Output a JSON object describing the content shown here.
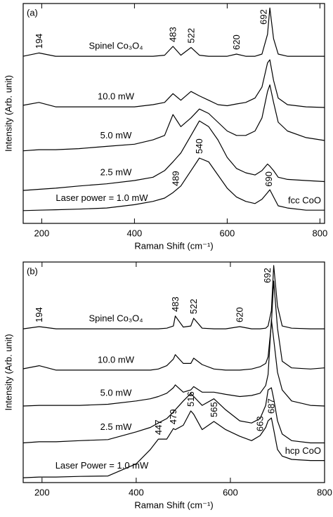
{
  "chart_data": [
    {
      "type": "line",
      "panel_label": "(a)",
      "xlabel": "Raman Shift (cm⁻¹)",
      "ylabel": "Intensity (Arb. unit)",
      "x": [
        160,
        194,
        230,
        280,
        340,
        400,
        440,
        465,
        483,
        500,
        522,
        540,
        560,
        580,
        600,
        620,
        640,
        660,
        675,
        687,
        692,
        700,
        710,
        730,
        770,
        810
      ],
      "xlim": [
        160,
        810
      ],
      "xticks": [
        200,
        400,
        600,
        800
      ],
      "ylim": [
        0,
        100
      ],
      "note": "fcc CoO",
      "series": [
        {
          "name": "Spinel Co₃O₄",
          "color": "#000000",
          "peaks": [
            194,
            483,
            522,
            620,
            692
          ],
          "values": [
            76,
            77.5,
            76,
            76,
            76,
            76,
            76,
            76.5,
            80.5,
            76.5,
            80,
            76.5,
            76,
            76,
            76,
            77,
            76,
            76,
            77,
            86,
            98,
            84,
            77,
            76,
            76,
            76
          ]
        },
        {
          "name": "10.0 mW",
          "color": "#000000",
          "values": [
            53.7,
            55,
            53,
            53,
            53,
            53,
            54,
            55,
            59,
            56,
            60,
            58,
            56,
            54,
            53.5,
            54.3,
            55,
            57,
            62,
            73,
            74.4,
            65,
            57,
            54,
            53,
            52.7
          ]
        },
        {
          "name": "5.0 mW",
          "color": "#000000",
          "values": [
            33,
            33.5,
            33.5,
            34,
            35,
            36,
            38,
            40,
            49.5,
            44,
            48,
            52,
            50,
            46,
            42,
            40,
            40,
            42,
            48,
            60,
            63,
            55,
            46,
            42,
            39,
            37.7
          ]
        },
        {
          "name": "2.5 mW",
          "color": "#000000",
          "values": [
            15,
            15.5,
            16,
            17,
            18,
            19.5,
            21,
            24,
            28,
            32,
            40,
            46.6,
            44,
            38,
            30,
            25,
            23,
            22,
            24,
            27,
            26,
            24,
            21,
            20,
            19.5,
            19
          ]
        },
        {
          "name": "Laser power = 1.0 mW",
          "color": "#000000",
          "peaks": [
            489,
            540,
            690
          ],
          "values": [
            5.8,
            6,
            6.2,
            6.5,
            7,
            8.5,
            10,
            11.5,
            14,
            17,
            24,
            29.7,
            28,
            22,
            16,
            12,
            10,
            9,
            11,
            14,
            15.3,
            12,
            8,
            7,
            6,
            6
          ]
        }
      ]
    },
    {
      "type": "line",
      "panel_label": "(b)",
      "xlabel": "Raman Shift (cm⁻¹)",
      "ylabel": "Intensity (Arb. unit)",
      "x": [
        160,
        194,
        230,
        280,
        340,
        400,
        430,
        447,
        465,
        479,
        483,
        500,
        516,
        522,
        540,
        565,
        590,
        620,
        645,
        663,
        675,
        680,
        687,
        692,
        700,
        710,
        730,
        770,
        800
      ],
      "xlim": [
        160,
        800
      ],
      "xticks": [
        200,
        400,
        600,
        800
      ],
      "ylim": [
        0,
        100
      ],
      "note": "hcp CoO",
      "series": [
        {
          "name": "Spinel Co₃O₄",
          "color": "#000000",
          "peaks": [
            194,
            483,
            522,
            620,
            692
          ],
          "values": [
            69.7,
            70.7,
            69.7,
            69.7,
            69.7,
            69.7,
            69.7,
            69.7,
            70,
            71,
            75.5,
            70.5,
            71,
            74.5,
            70,
            69.7,
            69.7,
            70.7,
            69.7,
            69.7,
            70,
            71,
            78,
            98.4,
            80,
            71,
            70,
            69.7,
            69.7
          ]
        },
        {
          "name": "10.0 mW",
          "color": "#000000",
          "values": [
            51.6,
            53,
            51,
            51,
            51,
            51,
            51,
            51.5,
            53,
            56,
            58,
            54,
            54,
            56.4,
            53.5,
            51.5,
            51,
            51,
            51.5,
            52.5,
            54,
            57,
            72,
            91.4,
            70,
            55,
            52,
            51.5,
            52
          ]
        },
        {
          "name": "5.0 mW",
          "color": "#000000",
          "values": [
            34.7,
            35,
            35,
            35,
            35.5,
            37,
            38,
            39,
            40.5,
            43,
            44.3,
            41,
            42,
            43.5,
            41,
            41,
            40,
            39,
            39.5,
            40.5,
            44,
            49,
            73.9,
            65,
            50,
            42,
            37,
            35,
            34.7
          ]
        },
        {
          "name": "2.5 mW",
          "color": "#000000",
          "values": [
            18,
            18.5,
            18.5,
            19,
            19.5,
            23,
            25,
            27,
            29,
            32,
            33,
            37,
            40.4,
            39,
            35,
            38,
            33,
            28,
            27,
            29,
            35,
            42,
            43,
            38,
            28,
            22,
            19,
            18,
            18
          ]
        },
        {
          "name": "Laser Power = 1.0 mW",
          "color": "#000000",
          "peaks": [
            447,
            479,
            516,
            565,
            663,
            687
          ],
          "values": [
            2.2,
            2.5,
            2.5,
            2.8,
            3,
            8.5,
            15,
            19.7,
            19.7,
            24.5,
            24,
            26,
            32.5,
            31,
            24,
            27.7,
            24,
            21,
            19,
            21.3,
            25,
            28,
            29.3,
            24,
            15,
            12,
            10.5,
            10,
            10
          ]
        }
      ]
    }
  ]
}
